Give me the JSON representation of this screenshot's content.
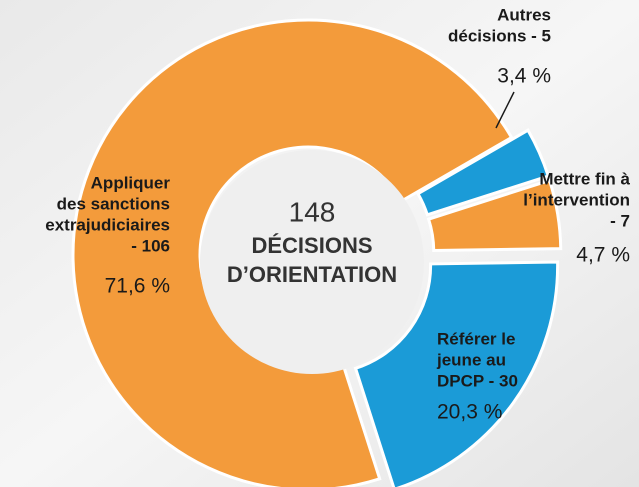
{
  "chart_data": {
    "type": "donut",
    "categories": [
      [
        "Autres",
        "décisions - 5"
      ],
      [
        "Mettre fin à",
        "l’intervention",
        "- 7"
      ],
      [
        "Référer le",
        "jeune au",
        "DPCP - 30"
      ],
      [
        "Appliquer",
        "des sanctions",
        "extrajudiciaires",
        "- 106"
      ]
    ],
    "values": [
      3.4,
      4.7,
      20.3,
      71.6
    ],
    "value_labels": [
      "3,4 %",
      "4,7 %",
      "20,3 %",
      "71,6 %"
    ],
    "colors": [
      "#1b9bd7",
      "#f39b3b",
      "#1b9bd7",
      "#f39b3b"
    ],
    "total": 148,
    "center_label": [
      "DÉCISIONS",
      "D’ORIENTATION"
    ]
  }
}
